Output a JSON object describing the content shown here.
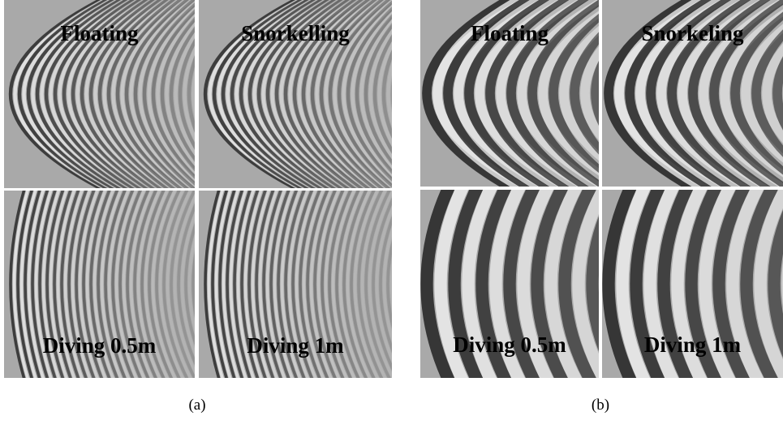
{
  "panels": [
    {
      "caption": "(a)",
      "cells": [
        "Floating",
        "Snorkelling",
        "Diving 0.5m",
        "Diving 1m"
      ]
    },
    {
      "caption": "(b)",
      "cells": [
        "Floating",
        "Snorkeling",
        "Diving 0.5m",
        "Diving 1m"
      ]
    }
  ]
}
